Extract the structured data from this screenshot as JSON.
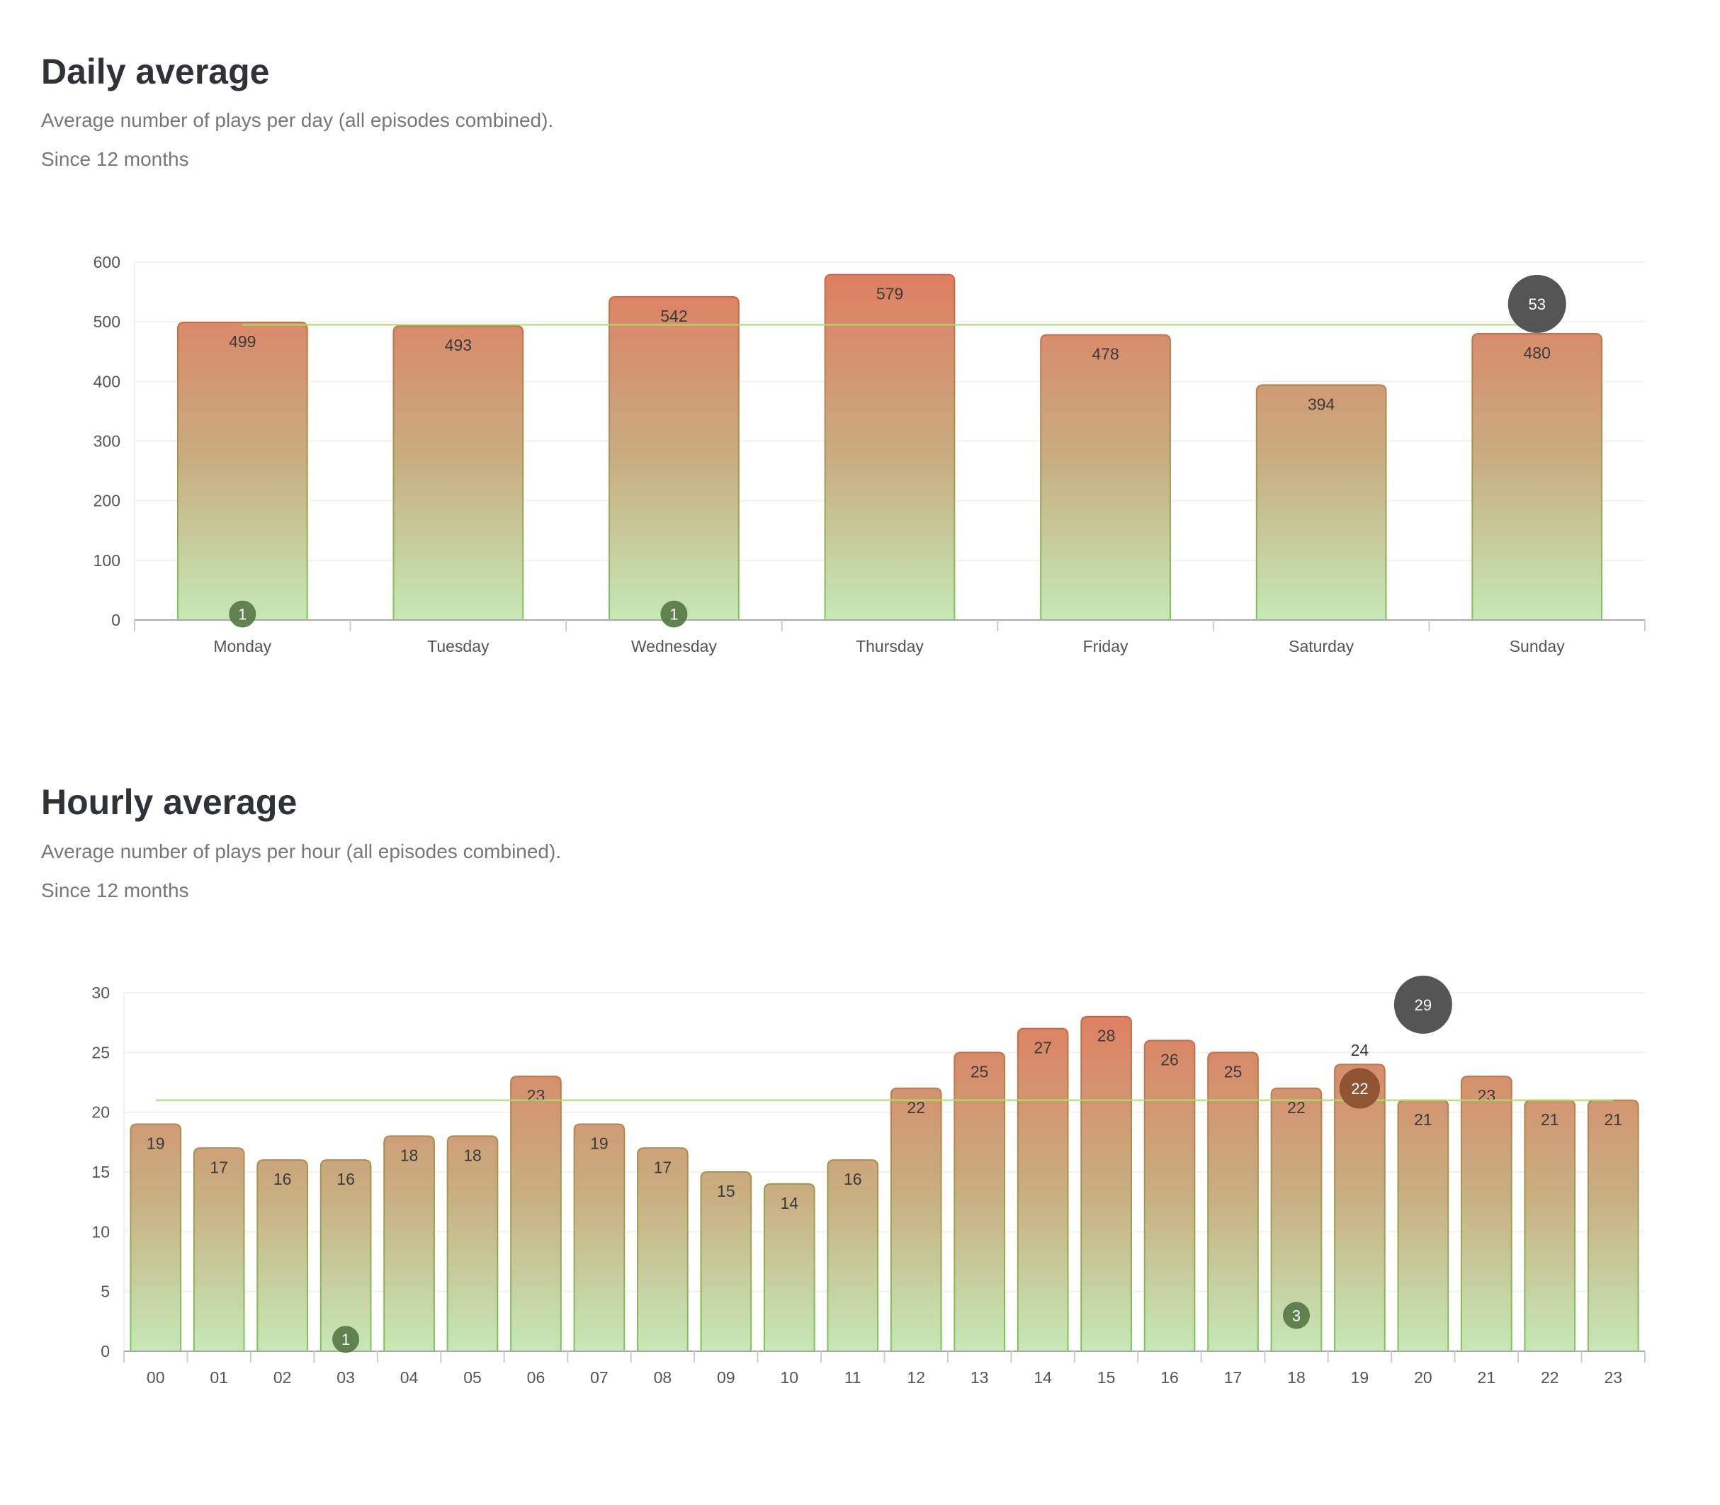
{
  "sections": [
    {
      "title": "Daily average",
      "subtitle": "Average number of plays per day (all episodes combined).",
      "period": "Since 12 months"
    },
    {
      "title": "Hourly average",
      "subtitle": "Average number of plays per hour (all episodes combined).",
      "period": "Since 12 months"
    }
  ],
  "colors": {
    "bar_top": "#e07a5f",
    "bar_bottom": "#c6e8b6",
    "average_line": "#a8e06a",
    "bubble_large": "#474747",
    "bubble_small": "#567a45",
    "bubble_mid": "#8a4f2e"
  },
  "chart_data": [
    {
      "type": "bar",
      "categories": [
        "Monday",
        "Tuesday",
        "Wednesday",
        "Thursday",
        "Friday",
        "Saturday",
        "Sunday"
      ],
      "values": [
        499,
        493,
        542,
        579,
        478,
        394,
        480
      ],
      "ylim": [
        0,
        600
      ],
      "yticks": [
        0,
        100,
        200,
        300,
        400,
        500,
        600
      ],
      "grid": true,
      "average_line": 495,
      "bubbles": [
        {
          "x": "Monday",
          "y": 10,
          "label": "1",
          "color": "#567a45"
        },
        {
          "x": "Wednesday",
          "y": 10,
          "label": "1",
          "color": "#567a45"
        },
        {
          "x": "Sunday",
          "y": 530,
          "label": "53",
          "color": "#474747"
        }
      ]
    },
    {
      "type": "bar",
      "categories": [
        "00",
        "01",
        "02",
        "03",
        "04",
        "05",
        "06",
        "07",
        "08",
        "09",
        "10",
        "11",
        "12",
        "13",
        "14",
        "15",
        "16",
        "17",
        "18",
        "19",
        "20",
        "21",
        "22",
        "23"
      ],
      "values": [
        19,
        17,
        16,
        16,
        18,
        18,
        23,
        19,
        17,
        15,
        14,
        16,
        22,
        25,
        27,
        28,
        26,
        25,
        22,
        24,
        21,
        23,
        21,
        21
      ],
      "ylim": [
        0,
        30
      ],
      "yticks": [
        0,
        5,
        10,
        15,
        20,
        25,
        30
      ],
      "grid": true,
      "average_line": 21,
      "bubbles": [
        {
          "x": "03",
          "y": 1,
          "label": "1",
          "color": "#567a45"
        },
        {
          "x": "18",
          "y": 3,
          "label": "3",
          "color": "#567a45"
        },
        {
          "x": "19",
          "y": 22,
          "label": "22",
          "color": "#8a4f2e"
        },
        {
          "x": "20",
          "y": 29,
          "label": "29",
          "color": "#474747"
        }
      ]
    }
  ]
}
